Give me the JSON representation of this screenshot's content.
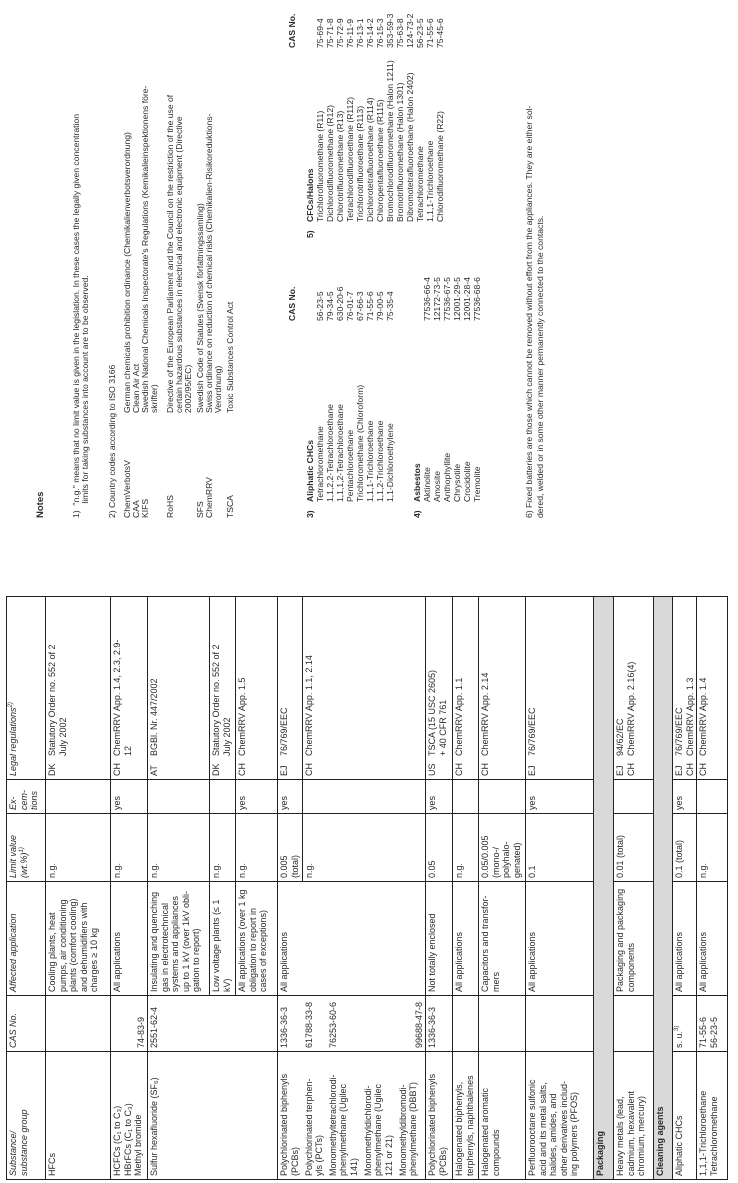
{
  "table": {
    "headers": {
      "substance": "Substance/\nsubstance group",
      "cas": "CAS No.",
      "affected": "Affected application",
      "limit": "Limit value\n(wt.%)",
      "limit_sup": "1)",
      "ex": "Ex-\ncem-\ntions",
      "legal": "Legal regulations",
      "legal_sup": "2)"
    },
    "hfcs": {
      "substance": "HFCs",
      "affected": "Cooling plants, heat\npumps, air conditioning\nplants (comfort cooling)\nand dehumidifiers with\ncharges ≥ 10 kg",
      "limit": "n.g.",
      "legal": [
        {
          "code": "DK",
          "text": "Statutory Order no. 552 of 2\nJuly 2002"
        }
      ]
    },
    "hcfcs": {
      "substance": "HCFCs (C₁ to C₃)\nHBrFCs (C₁ to C₃)\nMethyl bromide",
      "cas": "74-83-9",
      "affected": "All applications",
      "limit": "n.g.",
      "ex": "yes",
      "legal": [
        {
          "code": "CH",
          "text": "ChemRRV App. 1.4, 2.3, 2.9-\n12"
        }
      ]
    },
    "sf6": {
      "substance": "Sulfur hexafluoride (SF₆)",
      "cas": "2551-62-4",
      "sub": [
        {
          "affected": "Insulating and quenching\ngas in electrotechnical\nsystems and appliances\nup to 1 kV (over 1kV obli-\ngation to report)",
          "limit": "n.g.",
          "ex": "",
          "legal": [
            {
              "code": "AT",
              "text": "BGBl. Nr. 447/2002"
            }
          ]
        },
        {
          "affected": "Low voltage plants (≤ 1\nkV)",
          "limit": "n.g.",
          "ex": "",
          "legal": [
            {
              "code": "DK",
              "text": "Statutory Order no. 552 of 2\nJuly 2002"
            }
          ]
        },
        {
          "affected": "All applications (over 1 kg\nobligation to report in\ncases of exceptions)",
          "limit": "n.g.",
          "ex": "yes",
          "legal": [
            {
              "code": "CH",
              "text": "ChemRRV App. 1.5"
            }
          ]
        }
      ]
    },
    "pcb_group": {
      "items": [
        {
          "name": "Polychlorinated biphenyls\n(PCBs)",
          "cas": "1336-36-3"
        },
        {
          "name": "Polychlorinated terphen-\nyls (PCTs)",
          "cas": "61788-33-8"
        },
        {
          "name": "Monomethyltetrachlorodi-\nphenylmethane (Ugilec\n141)",
          "cas": "76253-60-6"
        },
        {
          "name": "Monomethyldichlorodi-\nphenylmethane (Ugilec\n121 or 21)",
          "cas": ""
        },
        {
          "name": "Monomethyldibromodi-\nphenylmethane (DBBT)",
          "cas": "99688-47-8"
        }
      ],
      "affected": "All applications",
      "limits": [
        {
          "limit": "0.005\n(total)",
          "ex": "yes",
          "legal": [
            {
              "code": "EJ",
              "text": "76/769/EEC"
            }
          ]
        },
        {
          "limit": "n.g.",
          "ex": "",
          "legal": [
            {
              "code": "CH",
              "text": "ChemRRV App. 1.1, 2.14"
            }
          ]
        }
      ]
    },
    "pcbs": {
      "substance": "Polychlorinated biphenyls\n(PCBs)",
      "cas": "1336-36-3",
      "affected": "Not totally enclosed",
      "limit": "0.05",
      "ex": "yes",
      "legal": [
        {
          "code": "US",
          "text": "TSCA (15 USC 2605)\n+ 40 CFR 761"
        }
      ]
    },
    "hal_biph": {
      "substance": "Halogenated biphenyls,\nterphenyls, naphthalenes",
      "affected": "All applications",
      "limit": "n.g.",
      "legal": [
        {
          "code": "CH",
          "text": "ChemRRV App. 1.1"
        }
      ]
    },
    "hal_arom": {
      "substance": "Halogenated aromatic\ncompounds",
      "affected": "Capacitors and transfor-\nmers",
      "limit": "0.05/0.005\n(mono-/\npolyhalo-\ngenated)",
      "legal": [
        {
          "code": "CH",
          "text": "ChemRRV App. 2.14"
        }
      ]
    },
    "pfos": {
      "substance": "Perfluorooctane sulfonic\nacid and its metal salts,\nhalides, amides, and\nother derivatives includ-\ning polymers (PFOS)",
      "affected": "All applications",
      "limit": "0.1",
      "ex": "yes",
      "legal": [
        {
          "code": "EJ",
          "text": "76/769/EEC"
        }
      ]
    },
    "section_packaging": "Packaging",
    "heavy": {
      "substance": "Heavy metals (lead,\ncadmium, hexavalent\nchromium, mercury)",
      "affected": "Packaging and packaging\ncomponents",
      "limit": "0.01 (total)",
      "legal": [
        {
          "code": "EJ",
          "text": "94/62/EC"
        },
        {
          "code": "CH",
          "text": "ChemRRV App. 2.16(4)"
        }
      ]
    },
    "section_cleaning": "Cleaning agents",
    "aliphatic": {
      "substance": "Aliphatic CHCs",
      "cas": "s. u.",
      "cas_sup": "3)",
      "affected": "All applications",
      "limit": "0.1 (total)",
      "ex": "yes",
      "legal": [
        {
          "code": "EJ",
          "text": "76/769/EEC"
        },
        {
          "code": "CH",
          "text": "ChemRRV App. 1.3"
        }
      ]
    },
    "tca": {
      "substance": "1,1,1-Trichloroethane\nTetrachloromethane",
      "cas": "71-55-6\n56-23-5",
      "affected": "All applications",
      "limit": "n.g.",
      "legal": [
        {
          "code": "CH",
          "text": "ChemRRV App. 1.4"
        }
      ]
    },
    "section_bg": "#d9d9d9"
  },
  "notes": {
    "title": "Notes",
    "n1": "1)  \"n.g.\" means that no limit value is given in the legislation. In these cases the legally given concentration\n      limits for taking substances into account are to be observed.",
    "n2_title": "2) Country codes according to ISO 3166",
    "codes": [
      {
        "code": "ChemVerbotsV",
        "text": "German chemicals prohibition ordinance (Chemikalienverbotsverordnung)"
      },
      {
        "code": "CAA",
        "text": "Clean Air Act"
      },
      {
        "code": "KIFS",
        "text": "Swedish National Chemicals Inspectorate's Regulations (Kemikalieinspektionens före-\nskrifter)"
      },
      {
        "code": "RoHS",
        "text": "Directive of the European Parliament and the Council on the restriction of the use of\ncertain hazardous substances in electrical and electronic equipment (Directive\n2002/95/EC)"
      },
      {
        "code": "SFS",
        "text": "Swedish Code of Statutes (Svensk författningssamling)"
      },
      {
        "code": "ChemRRV",
        "text": "Swiss ordinance on reduction of chemical risks (Chemikalien-Risikoreduktions-\nVerordnung)"
      },
      {
        "code": "TSCA",
        "text": "Toxic Substances Control Act"
      }
    ],
    "cas_header": "CAS No.",
    "n3": {
      "num": "3)",
      "title": "Aliphatic CHCs",
      "items": [
        {
          "name": "Tetrachloromethane",
          "cas": "56-23-5"
        },
        {
          "name": "1,1,2,2-Tetrachloroethane",
          "cas": "79-34-5"
        },
        {
          "name": "1,1,1,2-Tetrachloroethane",
          "cas": "630-20-6"
        },
        {
          "name": "Pentachloroethane",
          "cas": "76-01-7"
        },
        {
          "name": "Trichloromethane (Chloroform)",
          "cas": "67-66-3"
        },
        {
          "name": "1,1,1-Trichloroethane",
          "cas": "71-55-6"
        },
        {
          "name": "1,1,2-Trichloroethane",
          "cas": "79-00-5"
        },
        {
          "name": "1,1-Dichloroethylene",
          "cas": "75-35-4"
        }
      ]
    },
    "n4": {
      "num": "4)",
      "title": "Asbestos",
      "items": [
        {
          "name": "Aktinolite",
          "cas": "77536-66-4"
        },
        {
          "name": "Amosite",
          "cas": "12172-73-5"
        },
        {
          "name": "Anthophyllite",
          "cas": "77536-67-5"
        },
        {
          "name": "Chrysotile",
          "cas": "12001-29-5"
        },
        {
          "name": "Crocidolite",
          "cas": "12001-28-4"
        },
        {
          "name": "Tremolite",
          "cas": "77536-68-6"
        }
      ]
    },
    "n5": {
      "num": "5)",
      "title": "CFCs/Halons",
      "items": [
        {
          "name": "Trichlorofluoromethane (R11)",
          "cas": "75-69-4"
        },
        {
          "name": "Dichlorodifluoromethane (R12)",
          "cas": "75-71-8"
        },
        {
          "name": "Chlorotrifluoromethane (R13)",
          "cas": "75-72-9"
        },
        {
          "name": "Tetrachlorodifluoroethane (R112)",
          "cas": "76-11-9"
        },
        {
          "name": "Trichlorotrifluoroethane (R113)",
          "cas": "76-13-1"
        },
        {
          "name": "Dichlorotetrafluoroethane (R114)",
          "cas": "76-14-2"
        },
        {
          "name": "Chloropentafluoroethane (R115)",
          "cas": "76-15-3"
        },
        {
          "name": "Bromochlorodifluoromethane (Halon 1211)",
          "cas": "353-59-3"
        },
        {
          "name": "Bromotrifluoromethane (Halon 1301)",
          "cas": "75-63-8"
        },
        {
          "name": "Dibromotetrafluoroethane (Halon 2402)",
          "cas": "124-73-2"
        },
        {
          "name": "Tetrachloromethane",
          "cas": "56-23-5"
        },
        {
          "name": "1,1,1-Trichloroethane",
          "cas": "71-55-6"
        },
        {
          "name": "Chlorodifluoromethane (R22)",
          "cas": "75-45-6"
        }
      ]
    },
    "n6": "6) Fixed batteries are those which cannot be removed without effort from the appliances. They are either sol-\ndered, welded or in some other manner permanently connected to the contacts."
  }
}
